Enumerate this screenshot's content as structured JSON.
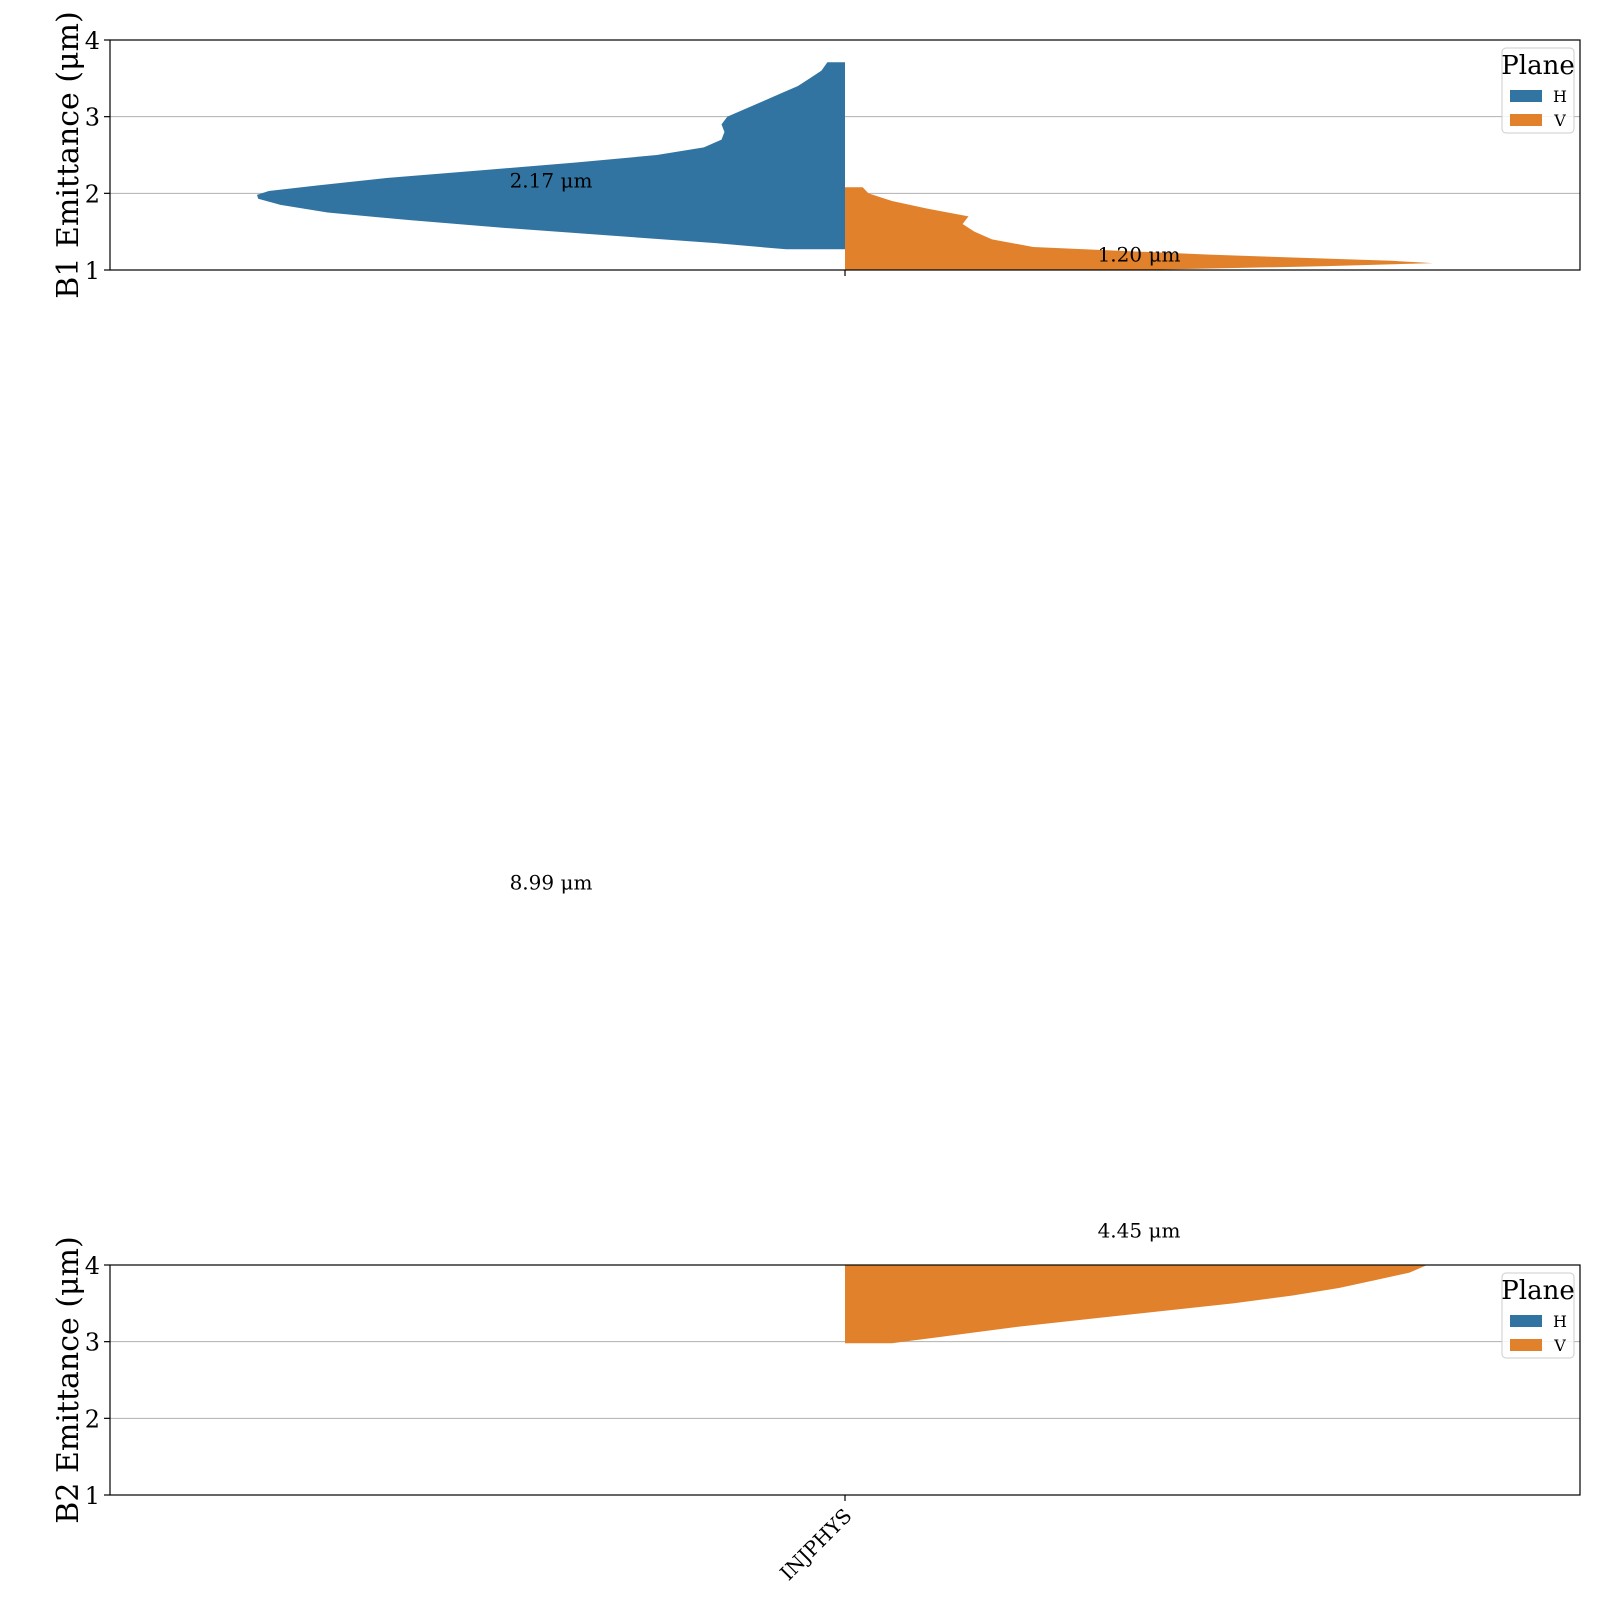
{
  "chart_data": [
    {
      "type": "violin",
      "ylabel": "B1 Emittance (μm)",
      "ylim": [
        1,
        4
      ],
      "yticks": [
        1,
        2,
        3,
        4
      ],
      "grid": "y",
      "categories": [
        "INJPHYS"
      ],
      "legend": {
        "title": "Plane",
        "placement": "top-right",
        "entries": [
          {
            "name": "H",
            "color": "#3274a1"
          },
          {
            "name": "V",
            "color": "#e1812c"
          }
        ]
      },
      "series": [
        {
          "name": "H",
          "color": "#3274a1",
          "side": "left",
          "profile": [
            [
              1.27,
              0.1
            ],
            [
              1.35,
              0.22
            ],
            [
              1.45,
              0.4
            ],
            [
              1.55,
              0.58
            ],
            [
              1.65,
              0.74
            ],
            [
              1.75,
              0.88
            ],
            [
              1.85,
              0.96
            ],
            [
              1.93,
              0.998
            ],
            [
              1.98,
              1.0
            ],
            [
              2.03,
              0.98
            ],
            [
              2.1,
              0.9
            ],
            [
              2.2,
              0.78
            ],
            [
              2.3,
              0.62
            ],
            [
              2.4,
              0.46
            ],
            [
              2.5,
              0.32
            ],
            [
              2.6,
              0.24
            ],
            [
              2.7,
              0.21
            ],
            [
              2.8,
              0.205
            ],
            [
              2.9,
              0.21
            ],
            [
              3.0,
              0.2
            ],
            [
              3.1,
              0.17
            ],
            [
              3.2,
              0.14
            ],
            [
              3.3,
              0.11
            ],
            [
              3.4,
              0.08
            ],
            [
              3.5,
              0.06
            ],
            [
              3.6,
              0.04
            ],
            [
              3.71,
              0.03
            ]
          ],
          "min": 1.27,
          "max": 3.71
        },
        {
          "name": "V",
          "color": "#e1812c",
          "side": "right",
          "profile": [
            [
              1.0,
              0.5
            ],
            [
              1.05,
              0.82
            ],
            [
              1.09,
              1.0
            ],
            [
              1.12,
              0.93
            ],
            [
              1.2,
              0.62
            ],
            [
              1.3,
              0.32
            ],
            [
              1.4,
              0.25
            ],
            [
              1.5,
              0.22
            ],
            [
              1.6,
              0.2
            ],
            [
              1.7,
              0.21
            ],
            [
              1.8,
              0.14
            ],
            [
              1.9,
              0.08
            ],
            [
              2.0,
              0.04
            ],
            [
              2.08,
              0.03
            ]
          ],
          "min": 1.0,
          "max": 2.08
        }
      ],
      "annotations": [
        {
          "text": "2.17 μm",
          "x": "H",
          "y": 2.17
        },
        {
          "text": "1.20 μm",
          "x": "V",
          "y": 1.2
        }
      ]
    },
    {
      "type": "violin",
      "ylabel": "B2 Emittance (μm)",
      "ylim": [
        1,
        4
      ],
      "yticks": [
        1,
        2,
        3,
        4
      ],
      "grid": "y",
      "categories": [
        "INJPHYS"
      ],
      "legend": {
        "title": "Plane",
        "placement": "top-right",
        "entries": [
          {
            "name": "H",
            "color": "#3274a1"
          },
          {
            "name": "V",
            "color": "#e1812c"
          }
        ]
      },
      "series": [
        {
          "name": "V",
          "color": "#e1812c",
          "side": "right",
          "profile": [
            [
              2.98,
              0.08
            ],
            [
              3.0,
              0.1
            ],
            [
              3.05,
              0.15
            ],
            [
              3.1,
              0.2
            ],
            [
              3.2,
              0.3
            ],
            [
              3.3,
              0.42
            ],
            [
              3.4,
              0.54
            ],
            [
              3.5,
              0.66
            ],
            [
              3.6,
              0.76
            ],
            [
              3.7,
              0.84
            ],
            [
              3.8,
              0.9
            ],
            [
              3.9,
              0.96
            ],
            [
              4.0,
              0.99
            ]
          ],
          "min": 2.98,
          "max": 4.0
        }
      ],
      "annotations": [
        {
          "text": "8.99 μm",
          "x": "H",
          "y": 8.99
        },
        {
          "text": "4.45 μm",
          "x": "V",
          "y": 4.45
        }
      ]
    }
  ]
}
